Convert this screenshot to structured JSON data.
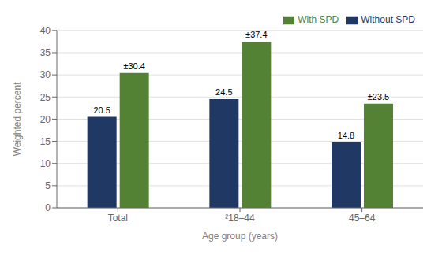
{
  "chart_data": {
    "type": "bar",
    "categories": [
      "Total",
      "²18–44",
      "45–64"
    ],
    "series": [
      {
        "name": "Without SPD",
        "color": "#1f3864",
        "values": [
          20.5,
          24.5,
          14.8
        ],
        "value_labels": [
          "20.5",
          "24.5",
          "14.8"
        ]
      },
      {
        "name": "With SPD",
        "color": "#548235",
        "values": [
          30.4,
          37.4,
          23.5
        ],
        "value_labels": [
          "±30.4",
          "±37.4",
          "±23.5"
        ]
      }
    ],
    "xlabel": "Age group (years)",
    "ylabel": "Weighted percent",
    "ylim": [
      0,
      40
    ],
    "yticks": [
      0,
      5,
      10,
      15,
      20,
      25,
      30,
      35,
      40
    ],
    "grid": true,
    "legend": "upper right",
    "data_labels": true
  }
}
